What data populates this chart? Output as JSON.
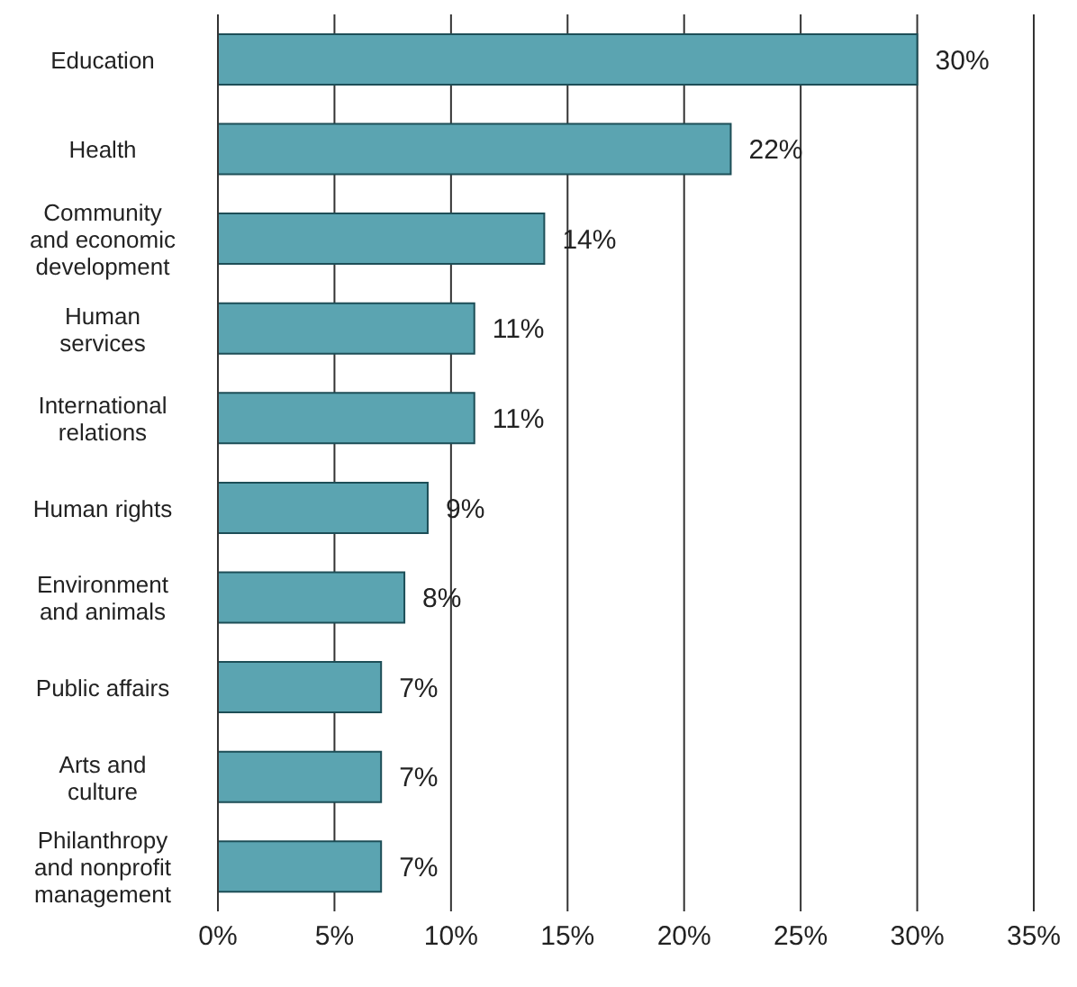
{
  "chart_data": {
    "type": "bar",
    "orientation": "horizontal",
    "categories": [
      "Education",
      "Health",
      "Community and economic development",
      "Human services",
      "International relations",
      "Human rights",
      "Environment and animals",
      "Public affairs",
      "Arts and culture",
      "Philanthropy and nonprofit management"
    ],
    "values": [
      30,
      22,
      14,
      11,
      11,
      9,
      8,
      7,
      7,
      7
    ],
    "value_labels": [
      "30%",
      "22%",
      "14%",
      "11%",
      "11%",
      "9%",
      "8%",
      "7%",
      "7%",
      "7%"
    ],
    "color": "#5ba4b1",
    "xlim": [
      0,
      35
    ],
    "xticks": [
      {
        "value": 0,
        "label": "0%"
      },
      {
        "value": 5,
        "label": "5%"
      },
      {
        "value": 10,
        "label": "10%"
      },
      {
        "value": 15,
        "label": "15%"
      },
      {
        "value": 20,
        "label": "20%"
      },
      {
        "value": 25,
        "label": "25%"
      },
      {
        "value": 30,
        "label": "30%"
      },
      {
        "value": 35,
        "label": "35%"
      }
    ],
    "grid": "x"
  }
}
